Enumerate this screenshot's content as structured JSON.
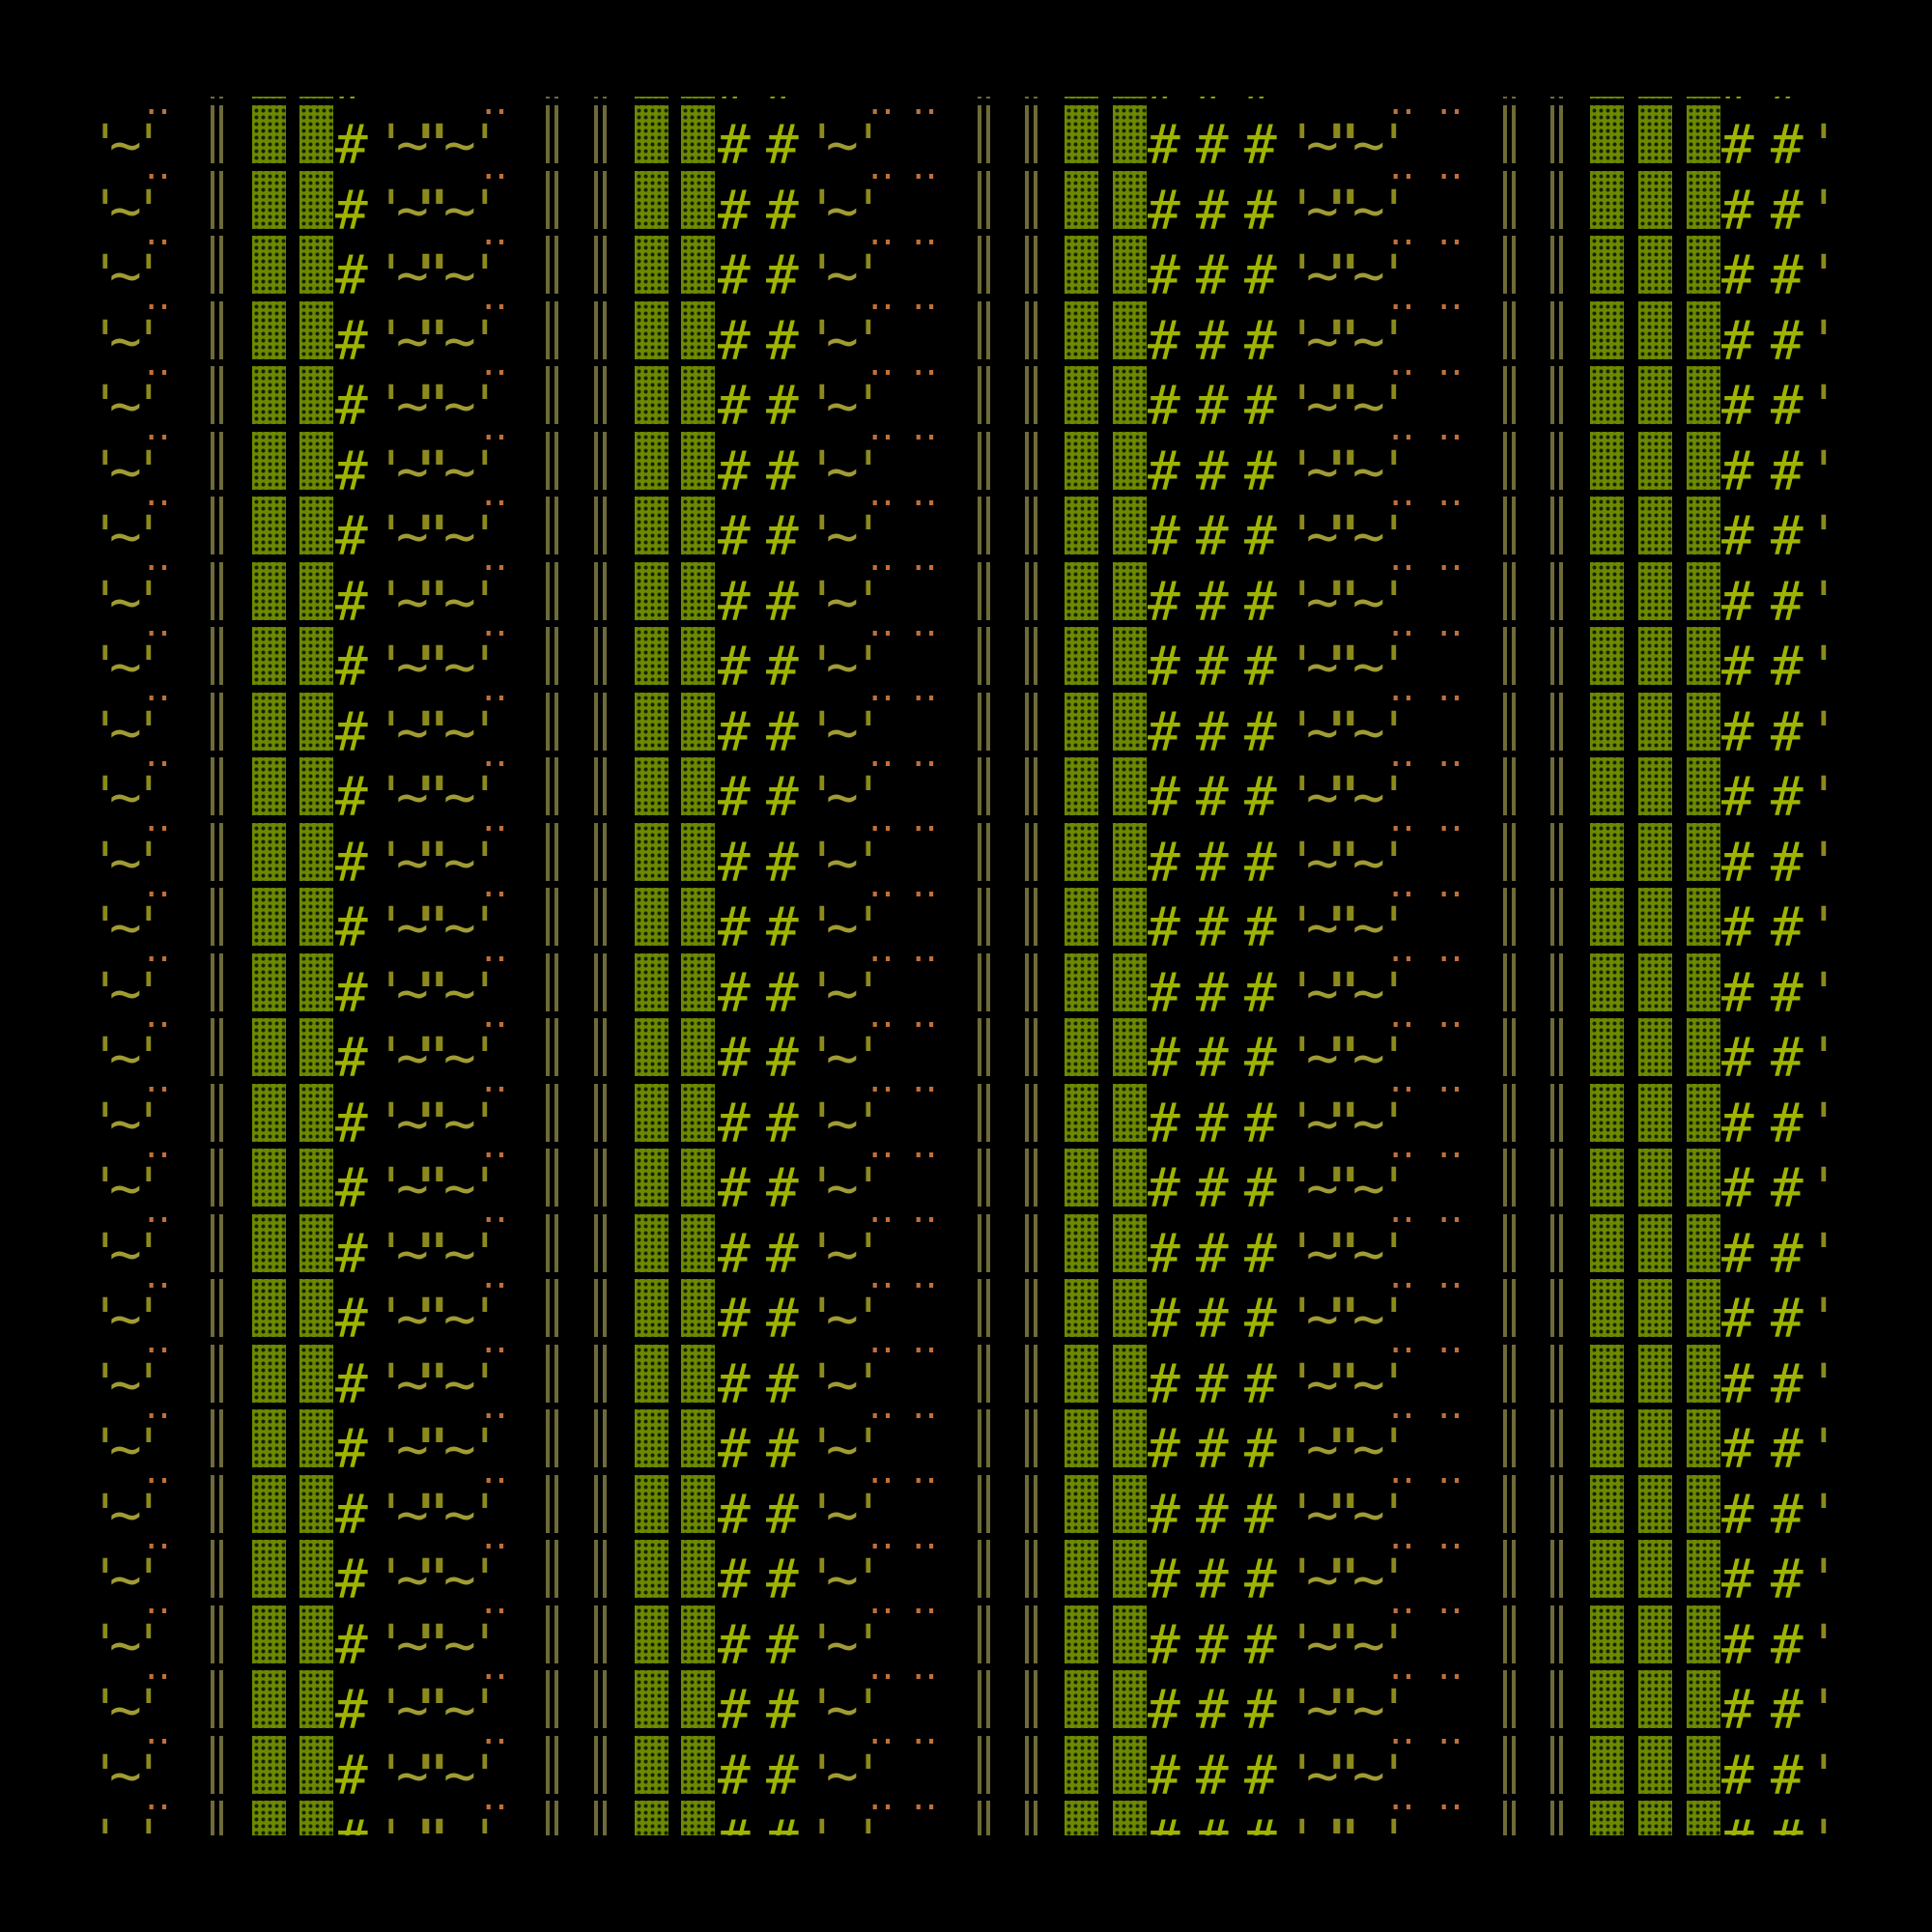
{
  "background": "#000000",
  "colors": {
    "quote": "#8c8a1c",
    "tilde": "#a19b34",
    "hash": "#9fb400",
    "dots": "#c0703a",
    "double_bar": "#6e6b38",
    "shade_block": "#6c8a00"
  },
  "row_text": "'~'‥ ║ ▓▓#'~\"~'‥ ║ ║ ▓▓##'~'‥ ‥ ║ ║ ▓▓###'~\"~'‥ ‥ ║ ║ ▓▓▓##'",
  "row_glyphs": [
    "'",
    "~",
    "'",
    "‥",
    "║",
    "▓",
    "▓",
    "#",
    "'",
    "~",
    "\"",
    "~",
    "'",
    "‥",
    "║",
    "║",
    "▓",
    "▓",
    "#",
    "#",
    "'",
    "~",
    "'",
    "‥",
    "‥",
    "║",
    "║",
    "▓",
    "▓",
    "#",
    "#",
    "#",
    "'",
    "~",
    "\"",
    "~",
    "'",
    "‥",
    "‥",
    "║",
    "║",
    "▓",
    "▓",
    "▓",
    "#",
    "#",
    "'"
  ]
}
